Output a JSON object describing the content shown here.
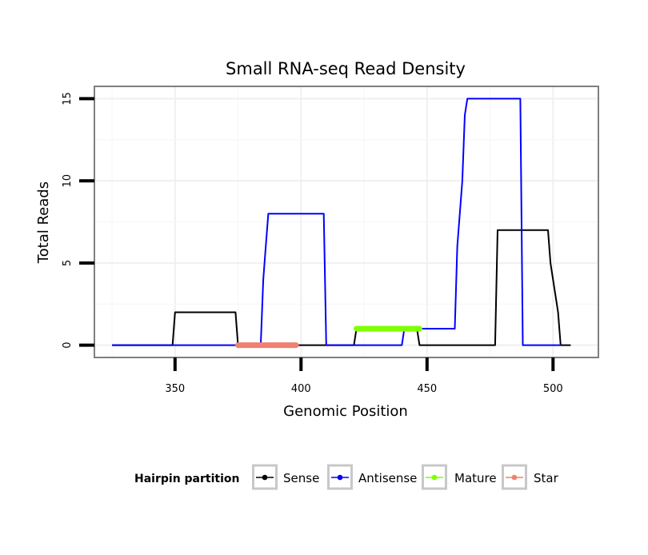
{
  "chart_data": {
    "type": "line",
    "title": "Small RNA-seq Read Density",
    "xlabel": "Genomic Position",
    "ylabel": "Total Reads",
    "xlim": [
      318,
      518
    ],
    "ylim": [
      -0.75,
      15.75
    ],
    "x_ticks": [
      350,
      400,
      450,
      500
    ],
    "y_ticks": [
      0,
      5,
      10,
      15
    ],
    "grid": true,
    "legend": {
      "title": "Hairpin partition",
      "position": "bottom",
      "entries": [
        {
          "name": "Sense",
          "color": "#000000"
        },
        {
          "name": "Antisense",
          "color": "#0000ff"
        },
        {
          "name": "Mature",
          "color": "#7fff00"
        },
        {
          "name": "Star",
          "color": "#f08070"
        }
      ]
    },
    "series": [
      {
        "name": "Sense",
        "color": "#000000",
        "x": [
          325,
          349,
          350,
          374,
          375,
          421,
          422,
          446,
          447,
          477,
          478,
          498,
          499,
          502,
          503,
          507
        ],
        "y": [
          0,
          0,
          2,
          2,
          0,
          0,
          1,
          1,
          0,
          0,
          7,
          7,
          5,
          2,
          0,
          0
        ]
      },
      {
        "name": "Antisense",
        "color": "#0000ff",
        "x": [
          325,
          384,
          385,
          386,
          387,
          409,
          410,
          440,
          441,
          461,
          462,
          464,
          465,
          466,
          487,
          488,
          503
        ],
        "y": [
          0,
          0,
          4,
          6,
          8,
          8,
          0,
          0,
          1,
          1,
          6,
          10,
          14,
          15,
          15,
          0,
          0
        ]
      },
      {
        "name": "Mature",
        "color": "#7fff00",
        "x": [
          422,
          447
        ],
        "y": [
          1,
          1
        ]
      },
      {
        "name": "Star",
        "color": "#f08070",
        "x": [
          375,
          398
        ],
        "y": [
          0,
          0
        ]
      }
    ]
  }
}
